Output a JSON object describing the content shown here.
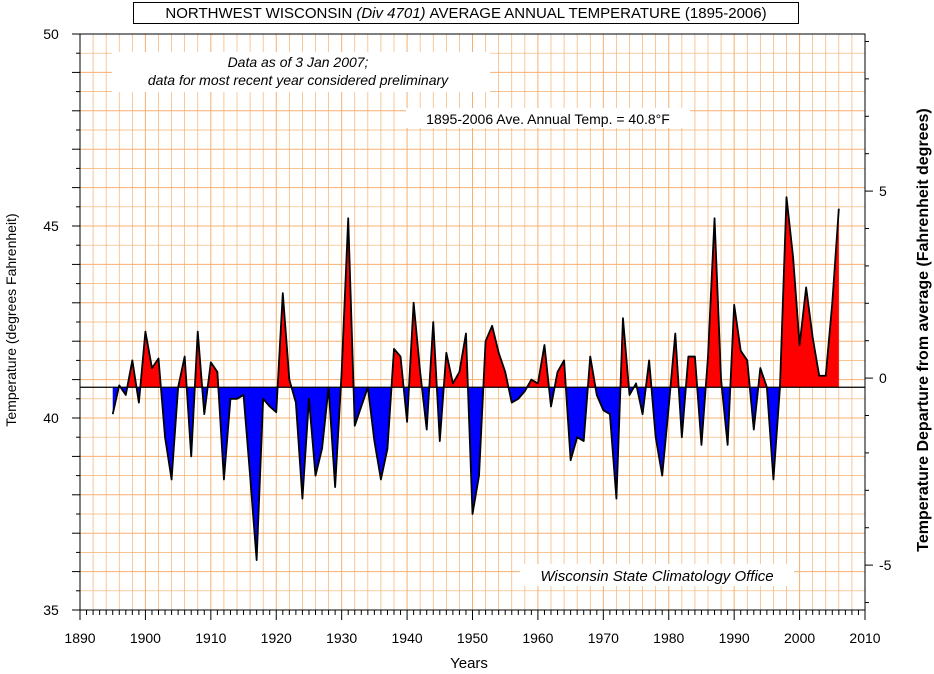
{
  "chart_data": {
    "type": "area",
    "title_part1": "NORTHWEST WISCONSIN",
    "title_div": "(Div 4701)",
    "title_part2": "AVERAGE  ANNUAL TEMPERATURE (1895-2006)",
    "xlabel": "Years",
    "ylabel": "Temperature  (degrees Fahrenheit)",
    "y2label": "Temperature Departure from average (Fahrenheit degrees)",
    "xlim": [
      1890,
      2010
    ],
    "ylim": [
      35,
      50
    ],
    "y2lim": [
      -6.2,
      9.2
    ],
    "xticks": [
      1890,
      1900,
      1910,
      1920,
      1930,
      1940,
      1950,
      1960,
      1970,
      1980,
      1990,
      2000,
      2010
    ],
    "yticks": [
      35,
      40,
      45,
      50
    ],
    "y2ticks": [
      -5,
      0,
      5
    ],
    "y2ticklabels": [
      "-5",
      "0",
      "5"
    ],
    "average": 40.8,
    "note_line1": "Data as of 3 Jan 2007;",
    "note_line2": "data for most recent year considered preliminary",
    "avg_label": "1895-2006 Ave. Annual Temp. = 40.8°F",
    "credit": "Wisconsin State Climatology Office",
    "above_color": "#ff0000",
    "below_color": "#0000ff",
    "grid_color": "#f5b070",
    "grid": true,
    "x": [
      1895,
      1896,
      1897,
      1898,
      1899,
      1900,
      1901,
      1902,
      1903,
      1904,
      1905,
      1906,
      1907,
      1908,
      1909,
      1910,
      1911,
      1912,
      1913,
      1914,
      1915,
      1916,
      1917,
      1918,
      1919,
      1920,
      1921,
      1922,
      1923,
      1924,
      1925,
      1926,
      1927,
      1928,
      1929,
      1930,
      1931,
      1932,
      1933,
      1934,
      1935,
      1936,
      1937,
      1938,
      1939,
      1940,
      1941,
      1942,
      1943,
      1944,
      1945,
      1946,
      1947,
      1948,
      1949,
      1950,
      1951,
      1952,
      1953,
      1954,
      1955,
      1956,
      1957,
      1958,
      1959,
      1960,
      1961,
      1962,
      1963,
      1964,
      1965,
      1966,
      1967,
      1968,
      1969,
      1970,
      1971,
      1972,
      1973,
      1974,
      1975,
      1976,
      1977,
      1978,
      1979,
      1980,
      1981,
      1982,
      1983,
      1984,
      1985,
      1986,
      1987,
      1988,
      1989,
      1990,
      1991,
      1992,
      1993,
      1994,
      1995,
      1996,
      1997,
      1998,
      1999,
      2000,
      2001,
      2002,
      2003,
      2004,
      2005,
      2006
    ],
    "values": [
      40.1,
      40.85,
      40.6,
      41.5,
      40.4,
      42.25,
      41.3,
      41.55,
      39.5,
      38.4,
      40.8,
      41.6,
      39.0,
      42.25,
      40.1,
      41.45,
      41.2,
      38.4,
      40.5,
      40.5,
      40.6,
      38.5,
      36.3,
      40.5,
      40.3,
      40.15,
      43.25,
      41.0,
      40.4,
      37.9,
      40.5,
      38.5,
      39.2,
      40.8,
      38.2,
      41.2,
      45.2,
      39.8,
      40.3,
      40.8,
      39.4,
      38.4,
      39.2,
      41.8,
      41.6,
      39.9,
      43.0,
      41.2,
      39.7,
      42.5,
      39.4,
      41.7,
      40.9,
      41.2,
      42.2,
      37.5,
      38.5,
      42.0,
      42.4,
      41.7,
      41.2,
      40.4,
      40.5,
      40.7,
      41.0,
      40.9,
      41.9,
      40.3,
      41.2,
      41.5,
      38.9,
      39.5,
      39.4,
      41.6,
      40.6,
      40.2,
      40.1,
      37.9,
      42.6,
      40.6,
      40.9,
      40.1,
      41.5,
      39.5,
      38.5,
      40.3,
      42.2,
      39.5,
      41.6,
      41.6,
      39.3,
      41.6,
      45.2,
      41.0,
      39.3,
      42.95,
      41.75,
      41.5,
      39.7,
      41.3,
      40.8,
      38.4,
      40.8,
      45.75,
      44.2,
      41.9,
      43.4,
      42.1,
      41.1,
      41.1,
      43.0,
      45.45
    ]
  }
}
